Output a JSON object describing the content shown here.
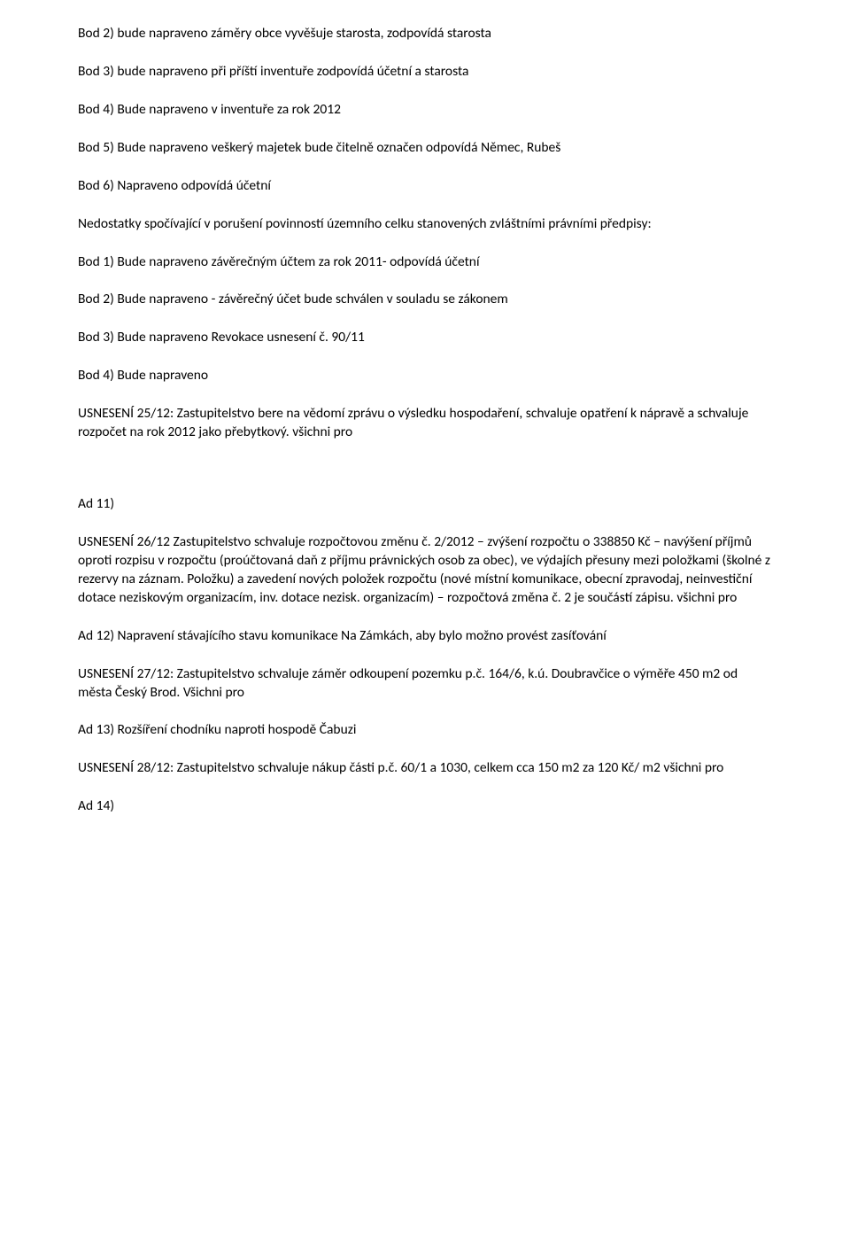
{
  "paragraphs": {
    "p1": "Bod 2) bude napraveno záměry obce vyvěšuje starosta, zodpovídá starosta",
    "p2": "Bod 3) bude napraveno při příští inventuře zodpovídá účetní a starosta",
    "p3": "Bod 4) Bude napraveno v inventuře za rok 2012",
    "p4": "Bod 5) Bude napraveno veškerý majetek bude čitelně označen odpovídá Němec, Rubeš",
    "p5": "Bod 6) Napraveno odpovídá účetní",
    "p6": "Nedostatky spočívající v porušení povinností územního celku stanovených zvláštními právními předpisy:",
    "p7": "Bod 1) Bude napraveno závěrečným účtem za rok 2011- odpovídá účetní",
    "p8": "Bod 2) Bude napraveno -  závěrečný účet bude schválen v souladu se zákonem",
    "p9": "Bod 3) Bude napraveno Revokace usnesení č. 90/11",
    "p10": "Bod 4) Bude napraveno",
    "p11": "USNESENÍ 25/12: Zastupitelstvo bere na vědomí zprávu o výsledku hospodaření, schvaluje opatření k nápravě a schvaluje rozpočet na rok 2012 jako přebytkový. všichni pro",
    "p12": "Ad 11)",
    "p13": "USNESENÍ 26/12  Zastupitelstvo schvaluje rozpočtovou změnu  č. 2/2012 – zvýšení rozpočtu o 338850 Kč – navýšení příjmů oproti rozpisu v rozpočtu (proúčtovaná daň z příjmu právnických osob za obec), ve výdajích přesuny mezi položkami (školné z rezervy na záznam. Položku) a zavedení nových položek rozpočtu (nové místní komunikace, obecní zpravodaj, neinvestiční dotace neziskovým organizacím, inv. dotace nezisk. organizacím) – rozpočtová změna č. 2 je součástí zápisu.  všichni pro",
    "p14": "Ad 12) Napravení stávajícího stavu komunikace Na Zámkách, aby bylo možno provést zasíťování",
    "p15": "USNESENÍ 27/12: Zastupitelstvo schvaluje záměr odkoupení pozemku p.č. 164/6, k.ú. Doubravčice o výměře 450 m2 od města Český Brod. Všichni pro",
    "p16": "Ad 13) Rozšíření chodníku naproti hospodě Čabuzi",
    "p17": "USNESENÍ 28/12: Zastupitelstvo schvaluje nákup části p.č. 60/1 a 1030, celkem cca 150 m2 za 120 Kč/ m2 všichni pro",
    "p18": "Ad 14)"
  }
}
